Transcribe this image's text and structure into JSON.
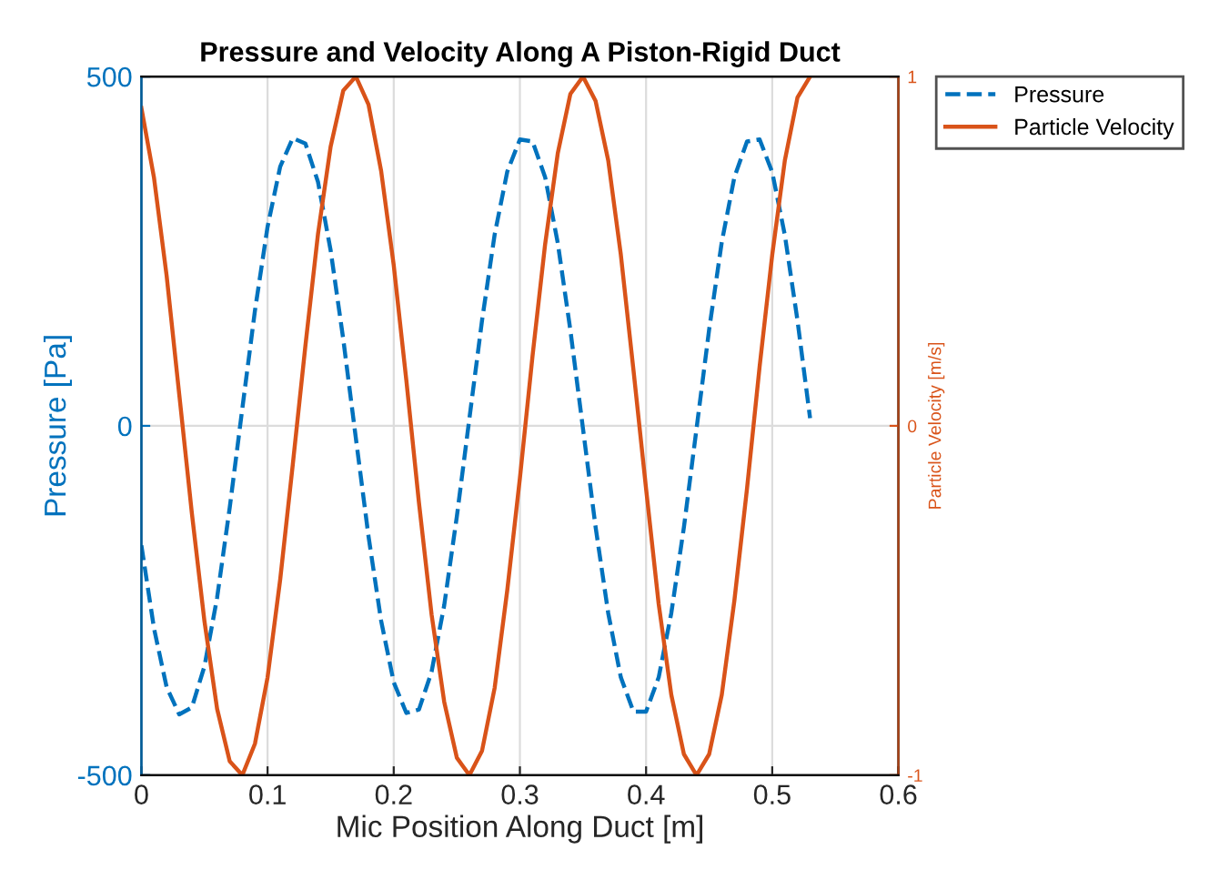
{
  "chart_data": {
    "type": "line",
    "title": "Pressure and Velocity Along A Piston-Rigid Duct",
    "xlabel": "Mic Position Along Duct [m]",
    "ylabel": "Pressure [Pa]",
    "y2label": "Particle Velocity [m/s]",
    "x": [
      0,
      0.01,
      0.02,
      0.03,
      0.04,
      0.05,
      0.06,
      0.07,
      0.08,
      0.09,
      0.1,
      0.11,
      0.12,
      0.13,
      0.14,
      0.15,
      0.16,
      0.17,
      0.18,
      0.19,
      0.2,
      0.21,
      0.22,
      0.23,
      0.24,
      0.25,
      0.26,
      0.27,
      0.28,
      0.29,
      0.3,
      0.31,
      0.32,
      0.33,
      0.34,
      0.35,
      0.36,
      0.37,
      0.38,
      0.39,
      0.4,
      0.41,
      0.42,
      0.43,
      0.44,
      0.45,
      0.46,
      0.47,
      0.48,
      0.49,
      0.5,
      0.51,
      0.52,
      0.53
    ],
    "series": [
      {
        "name": "Pressure",
        "color": "#0072bd",
        "line_style": "dashed",
        "values": [
          -171,
          -290,
          -374,
          -413,
          -403,
          -344,
          -246,
          -117,
          25,
          165,
          285,
          371,
          412,
          404,
          349,
          251,
          124,
          -18,
          -158,
          -279,
          -367,
          -411,
          -406,
          -352,
          -257,
          -130,
          11,
          151,
          274,
          364,
          410,
          407,
          356,
          262,
          137,
          -4,
          -145,
          -268,
          -360,
          -409,
          -409,
          -360,
          -268,
          -145,
          -4,
          138,
          263,
          356,
          407,
          410,
          363,
          273,
          151,
          11
        ]
      },
      {
        "name": "Particle Velocity",
        "color": "#d95319",
        "line_style": "solid",
        "axis": "y2",
        "values": [
          0.91,
          0.71,
          0.43,
          0.09,
          -0.25,
          -0.56,
          -0.81,
          -0.96,
          -1.0,
          -0.91,
          -0.72,
          -0.44,
          -0.11,
          0.23,
          0.55,
          0.8,
          0.96,
          1.0,
          0.92,
          0.73,
          0.46,
          0.13,
          -0.22,
          -0.54,
          -0.79,
          -0.95,
          -1.0,
          -0.93,
          -0.75,
          -0.47,
          -0.15,
          0.2,
          0.52,
          0.78,
          0.95,
          1.0,
          0.93,
          0.76,
          0.49,
          0.16,
          -0.18,
          -0.51,
          -0.77,
          -0.94,
          -1.0,
          -0.94,
          -0.77,
          -0.5,
          -0.18,
          0.17,
          0.49,
          0.76,
          0.94,
          1.0
        ]
      }
    ],
    "xlim": [
      0,
      0.6
    ],
    "xticks": [
      0,
      0.1,
      0.2,
      0.3,
      0.4,
      0.5,
      0.6
    ],
    "ylim": [
      -500,
      500
    ],
    "yticks": [
      -500,
      0,
      500
    ],
    "y2lim": [
      -1,
      1
    ],
    "y2ticks": [
      -1,
      0,
      1
    ],
    "grid": true,
    "legend": "top right",
    "marker": "none"
  }
}
